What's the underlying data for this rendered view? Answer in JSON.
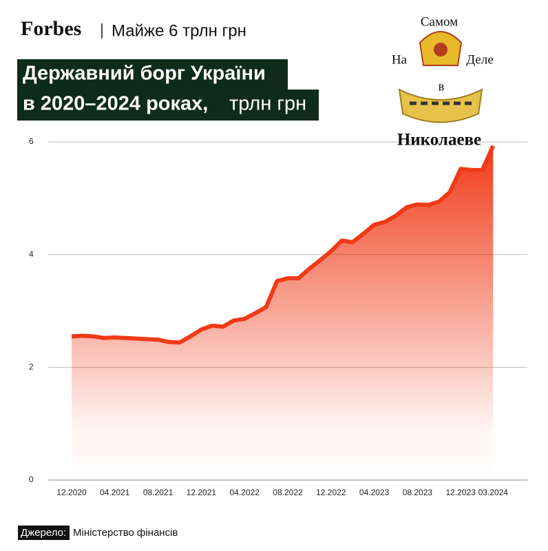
{
  "header": {
    "logo": "Forbes",
    "subtitle": "Майже 6 трлн грн"
  },
  "chart_data": {
    "type": "line",
    "title": [
      "Державний борг України",
      "в 2020–2024 роках,"
    ],
    "unit": "трлн грн",
    "categories": [
      "12.2020",
      null,
      null,
      null,
      "04.2021",
      null,
      null,
      null,
      "08.2021",
      null,
      null,
      null,
      "12.2021",
      null,
      null,
      null,
      "04.2022",
      null,
      null,
      null,
      "08.2022",
      null,
      null,
      null,
      "12.2022",
      null,
      null,
      null,
      "04.2023",
      null,
      null,
      null,
      "08.2023",
      null,
      null,
      null,
      "12.2023",
      null,
      null,
      "03.2024"
    ],
    "series": [
      {
        "color": "#f03a17",
        "values": [
          2.55,
          2.56,
          2.55,
          2.52,
          2.53,
          2.52,
          2.51,
          2.5,
          2.49,
          2.45,
          2.44,
          2.55,
          2.67,
          2.74,
          2.72,
          2.83,
          2.86,
          2.96,
          3.07,
          3.53,
          3.58,
          3.58,
          3.75,
          3.9,
          4.06,
          4.25,
          4.22,
          4.37,
          4.53,
          4.58,
          4.69,
          4.84,
          4.89,
          4.88,
          4.94,
          5.11,
          5.52,
          5.5,
          5.5,
          5.93
        ]
      }
    ],
    "ylim": [
      0,
      6
    ],
    "yticks": [
      0,
      2,
      4,
      6
    ],
    "grid": true
  },
  "source_label": "Джерело:",
  "source": "Міністерство фінансів",
  "watermark": [
    "Самом",
    "На",
    "Деле",
    "в",
    "Николаеве"
  ]
}
